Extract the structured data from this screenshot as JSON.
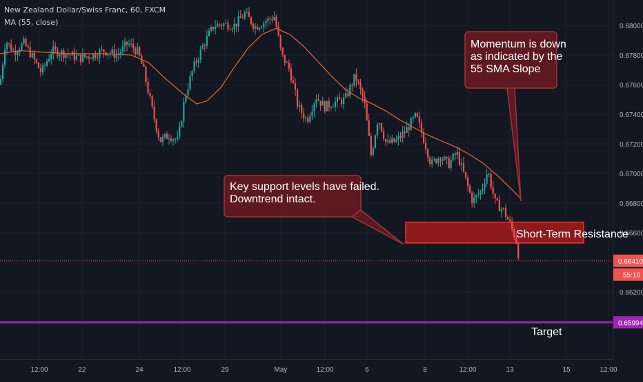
{
  "header": {
    "symbol": "New Zealand Dollar/Swiss Franc, 60, FXCM",
    "indicator": "MA (55, close)"
  },
  "colors": {
    "background": "#131722",
    "grid": "#1e222d",
    "up": "#26a69a",
    "down": "#ef5350",
    "ma": "#e0632a",
    "target_line": "#9c27b0",
    "callout_fill": "#6b1a1f",
    "callout_border": "#a3323a",
    "zone_fill": "#b71c1c",
    "zone_border": "#ff2a2a",
    "axis_text": "#b2b5be"
  },
  "chart_data": {
    "type": "candlestick",
    "ylim": [
      0.6607,
      0.6812
    ],
    "y_ticks": [
      "0.68000",
      "0.67800",
      "0.67600",
      "0.67400",
      "0.67200",
      "0.67000",
      "0.66800",
      "0.66600",
      "0.66200"
    ],
    "x_ticks": [
      "12:00",
      "22",
      "24",
      "12:00",
      "29",
      "May",
      "12:00",
      "6",
      "8",
      "12:00",
      "13",
      "15",
      "12:00"
    ],
    "price_path": [
      [
        0,
        0.676
      ],
      [
        8,
        0.679
      ],
      [
        20,
        0.6782
      ],
      [
        35,
        0.6788
      ],
      [
        48,
        0.6778
      ],
      [
        60,
        0.6768
      ],
      [
        75,
        0.6783
      ],
      [
        95,
        0.6781
      ],
      [
        115,
        0.6778
      ],
      [
        135,
        0.678
      ],
      [
        150,
        0.6783
      ],
      [
        170,
        0.678
      ],
      [
        185,
        0.6788
      ],
      [
        200,
        0.6782
      ],
      [
        208,
        0.677
      ],
      [
        222,
        0.674
      ],
      [
        232,
        0.6722
      ],
      [
        245,
        0.6726
      ],
      [
        258,
        0.6722
      ],
      [
        268,
        0.6752
      ],
      [
        280,
        0.6771
      ],
      [
        295,
        0.6787
      ],
      [
        310,
        0.68
      ],
      [
        325,
        0.6801
      ],
      [
        340,
        0.68
      ],
      [
        355,
        0.6808
      ],
      [
        370,
        0.6799
      ],
      [
        385,
        0.6803
      ],
      [
        398,
        0.6806
      ],
      [
        408,
        0.678
      ],
      [
        420,
        0.677
      ],
      [
        432,
        0.6745
      ],
      [
        445,
        0.6736
      ],
      [
        458,
        0.6752
      ],
      [
        470,
        0.6745
      ],
      [
        485,
        0.6748
      ],
      [
        500,
        0.675
      ],
      [
        515,
        0.6766
      ],
      [
        528,
        0.6748
      ],
      [
        538,
        0.6712
      ],
      [
        548,
        0.6738
      ],
      [
        560,
        0.672
      ],
      [
        575,
        0.6722
      ],
      [
        590,
        0.673
      ],
      [
        603,
        0.6739
      ],
      [
        615,
        0.6722
      ],
      [
        625,
        0.6706
      ],
      [
        638,
        0.6712
      ],
      [
        650,
        0.6706
      ],
      [
        662,
        0.6714
      ],
      [
        672,
        0.67
      ],
      [
        685,
        0.6681
      ],
      [
        697,
        0.6688
      ],
      [
        707,
        0.6702
      ],
      [
        718,
        0.668
      ],
      [
        730,
        0.6675
      ],
      [
        740,
        0.6665
      ],
      [
        748,
        0.6655
      ],
      [
        753,
        0.6641
      ]
    ],
    "ma_55": [
      [
        0,
        0.6781
      ],
      [
        30,
        0.6783
      ],
      [
        60,
        0.6782
      ],
      [
        100,
        0.6781
      ],
      [
        150,
        0.6781
      ],
      [
        190,
        0.678
      ],
      [
        215,
        0.6775
      ],
      [
        240,
        0.6764
      ],
      [
        265,
        0.6754
      ],
      [
        285,
        0.6747
      ],
      [
        300,
        0.6749
      ],
      [
        320,
        0.6758
      ],
      [
        340,
        0.6772
      ],
      [
        360,
        0.6785
      ],
      [
        380,
        0.6794
      ],
      [
        400,
        0.6798
      ],
      [
        420,
        0.6794
      ],
      [
        440,
        0.6786
      ],
      [
        460,
        0.6776
      ],
      [
        480,
        0.6766
      ],
      [
        500,
        0.6757
      ],
      [
        520,
        0.6751
      ],
      [
        540,
        0.6747
      ],
      [
        560,
        0.6742
      ],
      [
        580,
        0.6736
      ],
      [
        600,
        0.6731
      ],
      [
        620,
        0.6726
      ],
      [
        640,
        0.6722
      ],
      [
        660,
        0.6718
      ],
      [
        680,
        0.6713
      ],
      [
        700,
        0.6707
      ],
      [
        720,
        0.6699
      ],
      [
        740,
        0.669
      ],
      [
        755,
        0.6683
      ]
    ],
    "current_price": {
      "value": 0.6641,
      "label": "0.66410",
      "countdown": "55:10"
    },
    "target": {
      "value": 0.65994,
      "label": "0.65994",
      "text": "Target"
    },
    "resistance_zone": {
      "low": 0.6653,
      "high": 0.6667,
      "label": "Short-Term Resistance"
    },
    "annotations": [
      {
        "name": "momentum",
        "lines": [
          "Momentum is down",
          "as indicated by the",
          "55 SMA Slope"
        ]
      },
      {
        "name": "support",
        "lines": [
          "Key support levels have failed.",
          "Downtrend intact."
        ]
      }
    ]
  }
}
